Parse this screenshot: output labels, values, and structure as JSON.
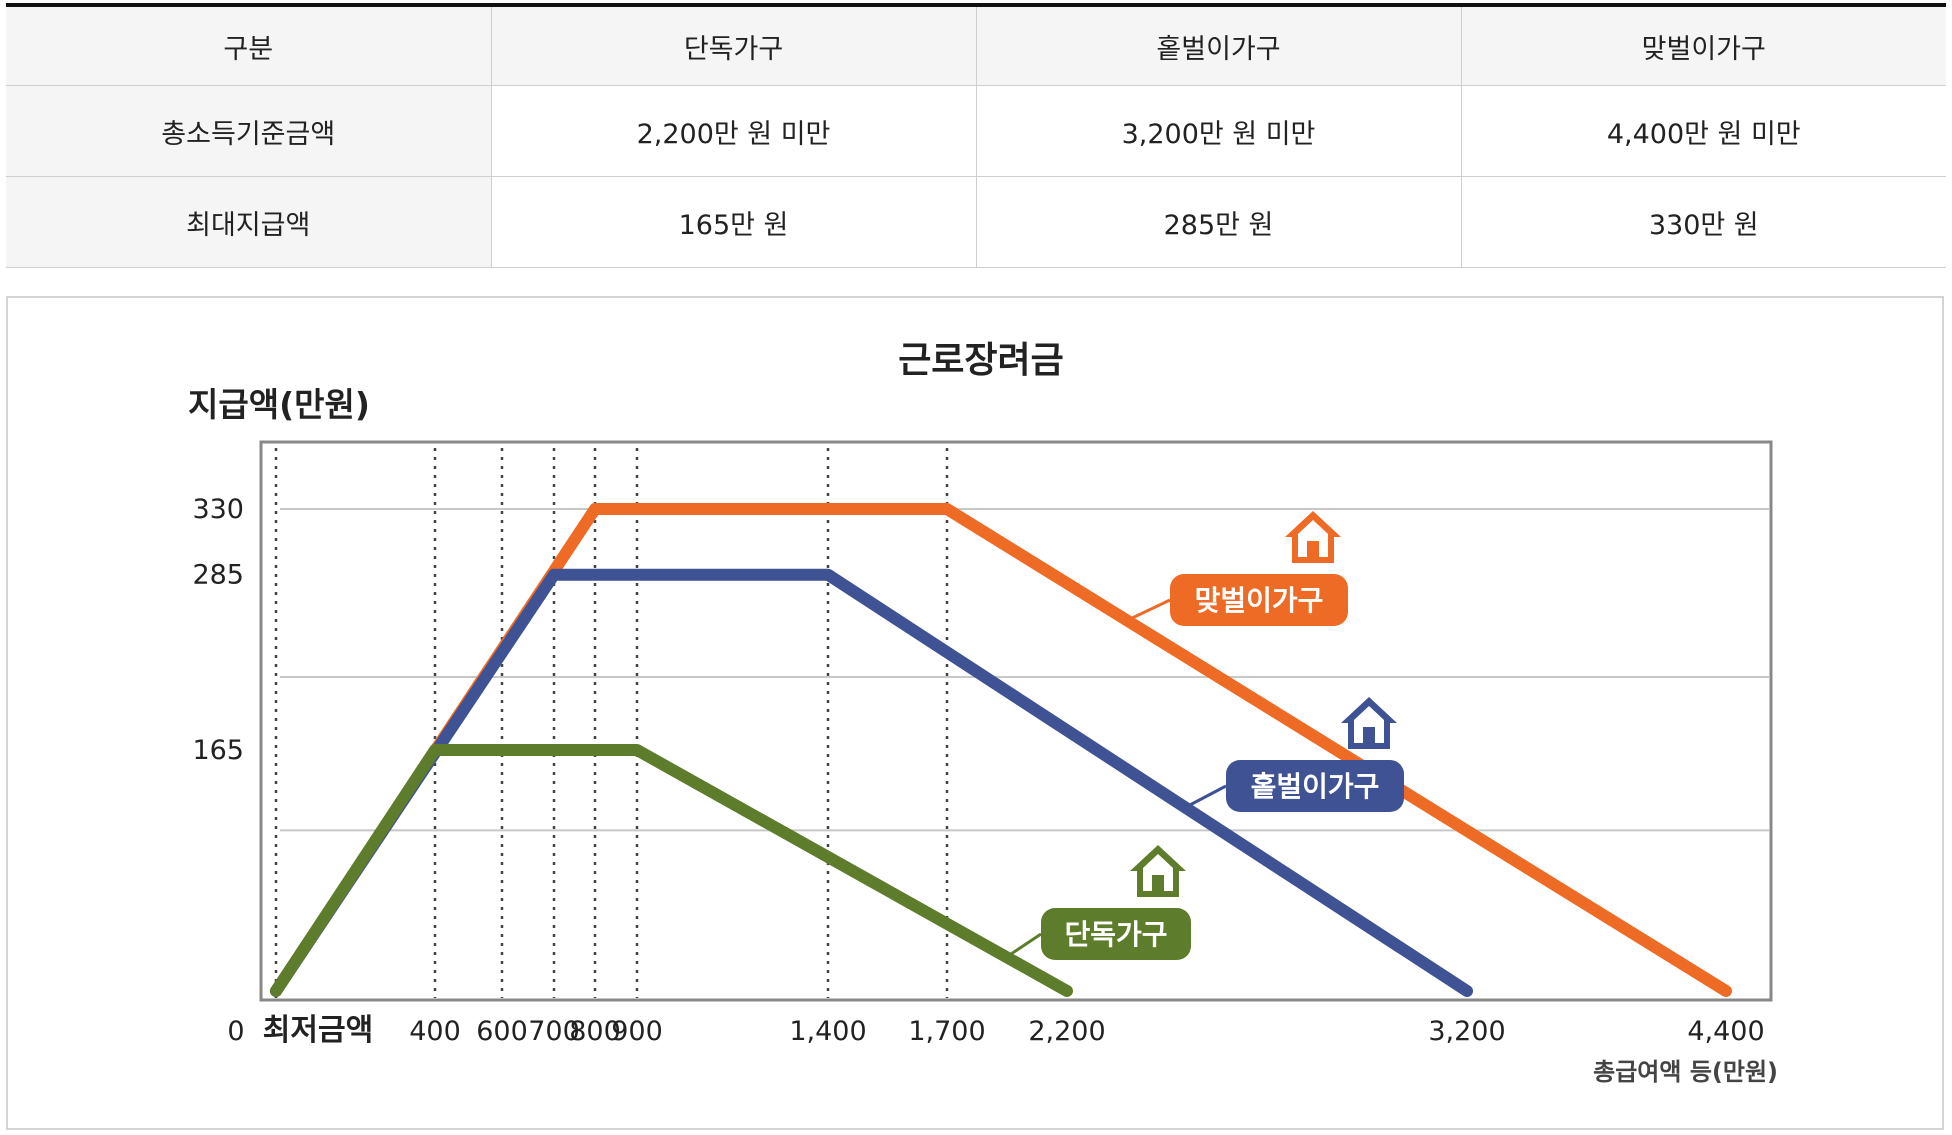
{
  "table": {
    "headers": [
      "구분",
      "단독가구",
      "홑벌이가구",
      "맞벌이가구"
    ],
    "rows": [
      [
        "총소득기준금액",
        "2,200만 원 미만",
        "3,200만 원 미만",
        "4,400만 원 미만"
      ],
      [
        "최대지급액",
        "165만 원",
        "285만 원",
        "330만 원"
      ]
    ]
  },
  "chart_data": {
    "type": "line",
    "title": "근로장려금",
    "ylabel": "지급액(만원)",
    "xlabel": "총급여액 등(만원)",
    "x_ticks": [
      {
        "value": 0,
        "label": "0"
      },
      {
        "value": 200,
        "label": "최저금액"
      },
      {
        "value": 400,
        "label": "400"
      },
      {
        "value": 600,
        "label": "600"
      },
      {
        "value": 700,
        "label": "700"
      },
      {
        "value": 800,
        "label": "800"
      },
      {
        "value": 900,
        "label": "900"
      },
      {
        "value": 1400,
        "label": "1,400"
      },
      {
        "value": 1700,
        "label": "1,700"
      },
      {
        "value": 2200,
        "label": "2,200"
      },
      {
        "value": 3200,
        "label": "3,200"
      },
      {
        "value": 4400,
        "label": "4,400"
      }
    ],
    "y_ticks": [
      {
        "value": 165,
        "label": "165"
      },
      {
        "value": 285,
        "label": "285"
      },
      {
        "value": 330,
        "label": "330"
      }
    ],
    "gridlines_y": [
      110,
      215,
      330
    ],
    "ylim": [
      0,
      370
    ],
    "series": [
      {
        "name": "맞벌이가구",
        "color": "#ee6b26",
        "points": [
          [
            200,
            0
          ],
          [
            800,
            330
          ],
          [
            1700,
            330
          ],
          [
            4400,
            0
          ]
        ]
      },
      {
        "name": "홑벌이가구",
        "color": "#3e5294",
        "points": [
          [
            200,
            0
          ],
          [
            700,
            285
          ],
          [
            1400,
            285
          ],
          [
            3200,
            0
          ]
        ]
      },
      {
        "name": "단독가구",
        "color": "#5d7d2c",
        "points": [
          [
            200,
            0
          ],
          [
            400,
            165
          ],
          [
            900,
            165
          ],
          [
            2200,
            0
          ]
        ]
      }
    ],
    "vertical_reference_lines": [
      200,
      400,
      600,
      700,
      800,
      900,
      1400,
      1700
    ],
    "legend_placement": "inline-labels",
    "grid": true
  }
}
